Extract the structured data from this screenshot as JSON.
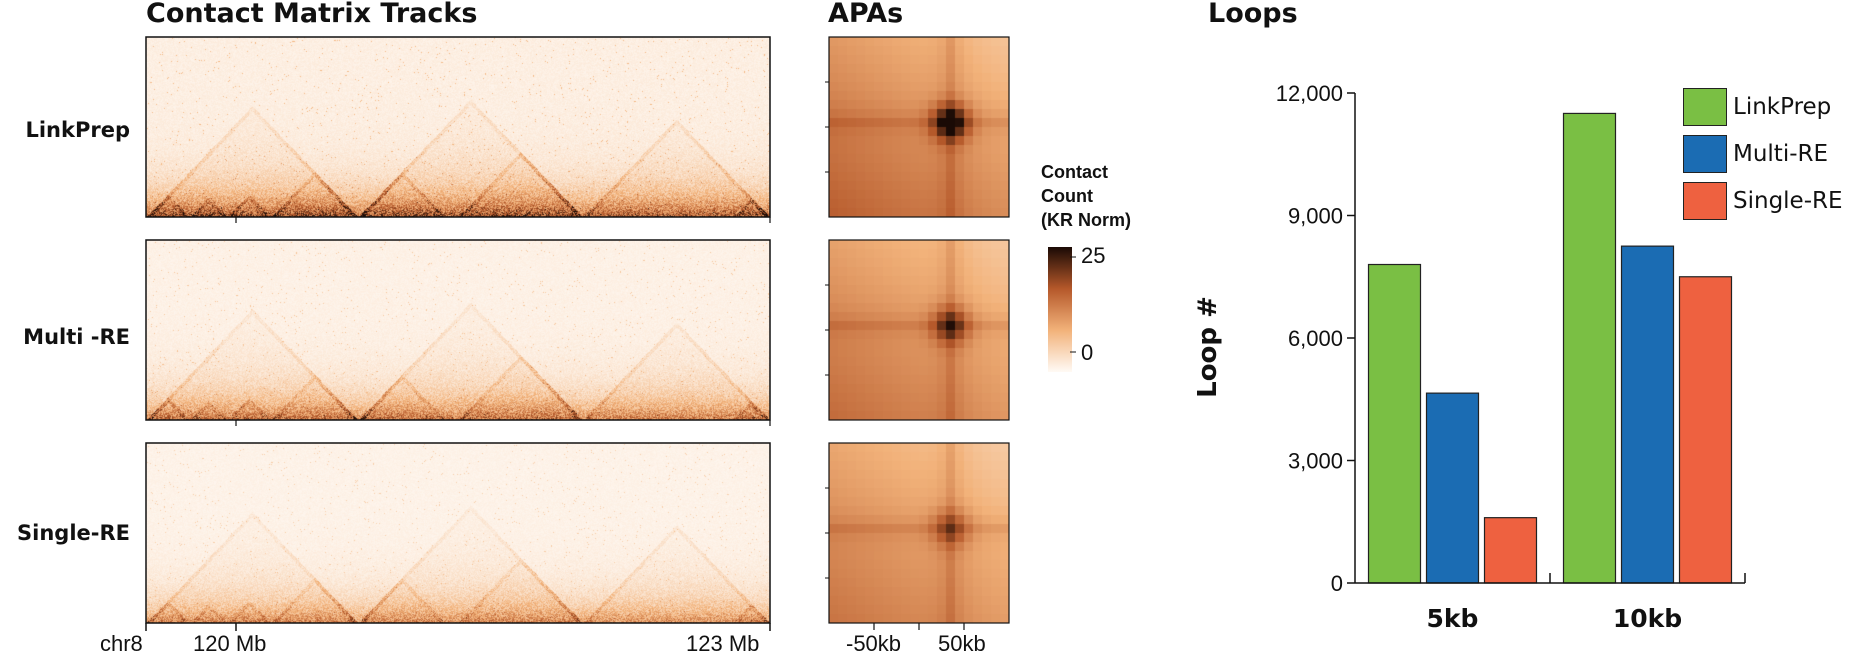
{
  "headers": {
    "tracks": "Contact Matrix Tracks",
    "apas": "APAs",
    "loops": "Loops"
  },
  "tracks": [
    {
      "label": "LinkPrep",
      "intensity": 1.0
    },
    {
      "label": "Multi -RE",
      "intensity": 0.8
    },
    {
      "label": "Single-RE",
      "intensity": 0.68
    }
  ],
  "track_axis": {
    "chrom": "chr8",
    "ticks": [
      "120 Mb",
      "123 Mb"
    ]
  },
  "apa": {
    "ticks": [
      "-50kb",
      "50kb"
    ],
    "center_strength": [
      1.0,
      0.7,
      0.5
    ]
  },
  "colorbar": {
    "title_lines": [
      "Contact",
      "Count",
      "(KR Norm)"
    ],
    "max_label": "25",
    "min_label": "0",
    "colors": [
      "#fffaf5",
      "#f2b27a",
      "#b5582a",
      "#1a0a05"
    ]
  },
  "chart_data": {
    "type": "bar",
    "categories": [
      "5kb",
      "10kb"
    ],
    "series": [
      {
        "name": "LinkPrep",
        "color": "#7abf44",
        "values": [
          7800,
          11500
        ]
      },
      {
        "name": "Multi-RE",
        "color": "#1b6cb3",
        "values": [
          4650,
          8250
        ]
      },
      {
        "name": "Single-RE",
        "color": "#ee6140",
        "values": [
          1600,
          7500
        ]
      }
    ],
    "ylabel": "Loop #",
    "ylim": [
      0,
      12000
    ],
    "yticks": [
      0,
      3000,
      6000,
      9000,
      12000
    ],
    "ytick_labels": [
      "0",
      "3,000",
      "6,000",
      "9,000",
      "12,000"
    ],
    "legend_position": "top-right"
  }
}
